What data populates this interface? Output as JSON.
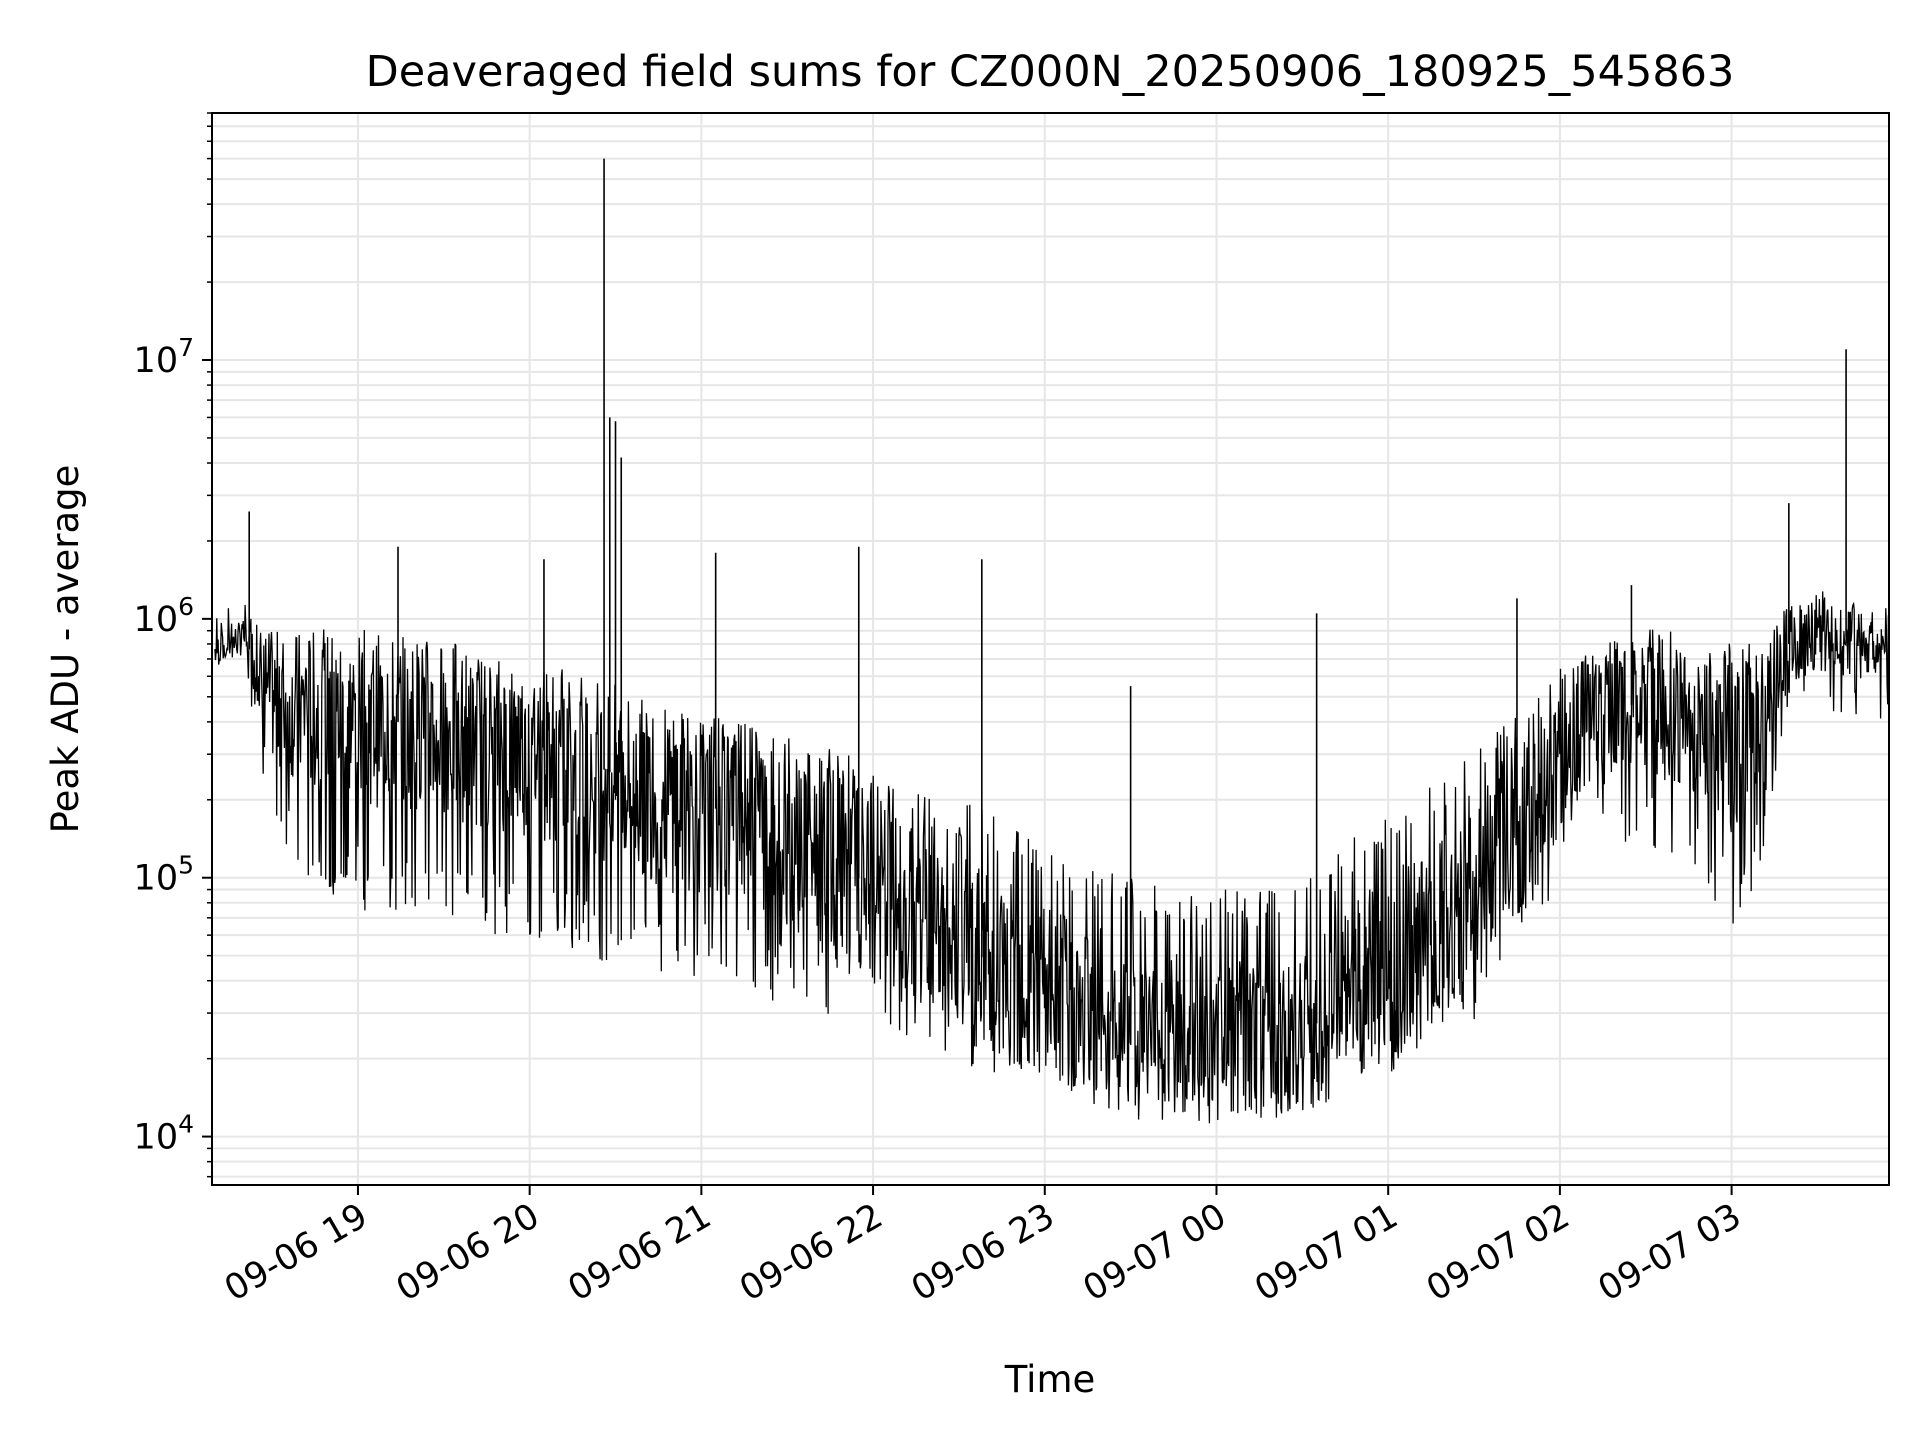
{
  "chart_data": {
    "type": "line",
    "title": "Deaveraged field sums for CZ000N_20250906_180925_545863",
    "xlabel": "Time",
    "ylabel": "Peak ADU - average",
    "y_scale": "log",
    "ylim": [
      6500,
      90000000
    ],
    "xlim": [
      "2025-09-06 18:09",
      "2025-09-07 03:55"
    ],
    "grid": true,
    "line_color": "#000000",
    "grid_color": "#e6e6e6",
    "x_ticks": [
      {
        "t": "2025-09-06 19:00",
        "label": "09-06 19"
      },
      {
        "t": "2025-09-06 20:00",
        "label": "09-06 20"
      },
      {
        "t": "2025-09-06 21:00",
        "label": "09-06 21"
      },
      {
        "t": "2025-09-06 22:00",
        "label": "09-06 22"
      },
      {
        "t": "2025-09-06 23:00",
        "label": "09-06 23"
      },
      {
        "t": "2025-09-07 00:00",
        "label": "09-07 00"
      },
      {
        "t": "2025-09-07 01:00",
        "label": "09-07 01"
      },
      {
        "t": "2025-09-07 02:00",
        "label": "09-07 02"
      },
      {
        "t": "2025-09-07 03:00",
        "label": "09-07 03"
      }
    ],
    "y_ticks": [
      {
        "value": 10000,
        "base": "10",
        "exp": "4"
      },
      {
        "value": 100000,
        "base": "10",
        "exp": "5"
      },
      {
        "value": 1000000,
        "base": "10",
        "exp": "6"
      },
      {
        "value": 10000000,
        "base": "10",
        "exp": "7"
      }
    ],
    "series": [
      {
        "x": [
          "2025-09-06 18:10",
          "2025-09-06 18:20",
          "2025-09-06 18:30",
          "2025-09-06 18:40",
          "2025-09-06 18:50",
          "2025-09-06 19:00",
          "2025-09-06 19:10",
          "2025-09-06 19:20",
          "2025-09-06 19:30",
          "2025-09-06 19:40",
          "2025-09-06 19:50",
          "2025-09-06 20:00",
          "2025-09-06 20:10",
          "2025-09-06 20:20",
          "2025-09-06 20:30",
          "2025-09-06 20:40",
          "2025-09-06 20:50",
          "2025-09-06 21:00",
          "2025-09-06 21:10",
          "2025-09-06 21:20",
          "2025-09-06 21:30",
          "2025-09-06 21:40",
          "2025-09-06 21:50",
          "2025-09-06 22:00",
          "2025-09-06 22:10",
          "2025-09-06 22:20",
          "2025-09-06 22:30",
          "2025-09-06 22:40",
          "2025-09-06 22:50",
          "2025-09-06 23:00",
          "2025-09-06 23:10",
          "2025-09-06 23:20",
          "2025-09-06 23:30",
          "2025-09-06 23:40",
          "2025-09-06 23:50",
          "2025-09-07 00:00",
          "2025-09-07 00:10",
          "2025-09-07 00:20",
          "2025-09-07 00:30",
          "2025-09-07 00:40",
          "2025-09-07 00:50",
          "2025-09-07 01:00",
          "2025-09-07 01:10",
          "2025-09-07 01:20",
          "2025-09-07 01:30",
          "2025-09-07 01:40",
          "2025-09-07 01:50",
          "2025-09-07 02:00",
          "2025-09-07 02:10",
          "2025-09-07 02:20",
          "2025-09-07 02:30",
          "2025-09-07 02:40",
          "2025-09-07 02:50",
          "2025-09-07 03:00",
          "2025-09-07 03:10",
          "2025-09-07 03:20",
          "2025-09-07 03:30",
          "2025-09-07 03:40",
          "2025-09-07 03:50"
        ],
        "base": [
          750000,
          850000,
          500000,
          450000,
          430000,
          420000,
          400000,
          400000,
          380000,
          350000,
          330000,
          320000,
          300000,
          280000,
          250000,
          220000,
          200000,
          190000,
          180000,
          170000,
          150000,
          130000,
          110000,
          90000,
          75000,
          65000,
          55000,
          48000,
          40000,
          35000,
          32000,
          30000,
          28000,
          26000,
          25000,
          24000,
          23000,
          24000,
          25000,
          30000,
          38000,
          45000,
          55000,
          70000,
          90000,
          130000,
          180000,
          300000,
          400000,
          450000,
          480000,
          450000,
          400000,
          350000,
          400000,
          800000,
          900000,
          850000,
          800000
        ],
        "upper": [
          950000,
          1100000,
          800000,
          750000,
          700000,
          700000,
          650000,
          650000,
          620000,
          600000,
          580000,
          560000,
          540000,
          500000,
          470000,
          450000,
          430000,
          420000,
          400000,
          380000,
          350000,
          330000,
          300000,
          280000,
          250000,
          220000,
          200000,
          180000,
          160000,
          140000,
          120000,
          110000,
          100000,
          95000,
          90000,
          90000,
          90000,
          95000,
          100000,
          120000,
          150000,
          180000,
          220000,
          260000,
          300000,
          400000,
          500000,
          700000,
          800000,
          850000,
          850000,
          800000,
          750000,
          700000,
          700000,
          1200000,
          1300000,
          1200000,
          1000000
        ],
        "lower": [
          600000,
          700000,
          150000,
          100000,
          80000,
          75000,
          70000,
          70000,
          65000,
          60000,
          60000,
          55000,
          55000,
          50000,
          45000,
          45000,
          40000,
          40000,
          38000,
          35000,
          32000,
          30000,
          28000,
          26000,
          24000,
          22000,
          20000,
          17000,
          15000,
          13000,
          12500,
          12000,
          11500,
          11500,
          11000,
          11000,
          11500,
          12000,
          12500,
          13000,
          15000,
          17000,
          20000,
          23000,
          27000,
          40000,
          55000,
          100000,
          150000,
          140000,
          130000,
          110000,
          90000,
          60000,
          100000,
          400000,
          450000,
          400000,
          400000
        ],
        "spikes": [
          {
            "t": "2025-09-06 18:22",
            "value": 2600000
          },
          {
            "t": "2025-09-06 19:14",
            "value": 1900000
          },
          {
            "t": "2025-09-06 20:05",
            "value": 1700000
          },
          {
            "t": "2025-09-06 20:26",
            "value": 60000000
          },
          {
            "t": "2025-09-06 20:28",
            "value": 6000000
          },
          {
            "t": "2025-09-06 20:30",
            "value": 5800000
          },
          {
            "t": "2025-09-06 20:32",
            "value": 4200000
          },
          {
            "t": "2025-09-06 21:05",
            "value": 1800000
          },
          {
            "t": "2025-09-06 21:55",
            "value": 1900000
          },
          {
            "t": "2025-09-06 22:38",
            "value": 1700000
          },
          {
            "t": "2025-09-06 23:30",
            "value": 550000
          },
          {
            "t": "2025-09-07 00:35",
            "value": 1050000
          },
          {
            "t": "2025-09-07 01:45",
            "value": 1200000
          },
          {
            "t": "2025-09-07 02:25",
            "value": 1350000
          },
          {
            "t": "2025-09-07 03:20",
            "value": 2800000
          },
          {
            "t": "2025-09-07 03:40",
            "value": 11000000
          }
        ]
      }
    ]
  }
}
